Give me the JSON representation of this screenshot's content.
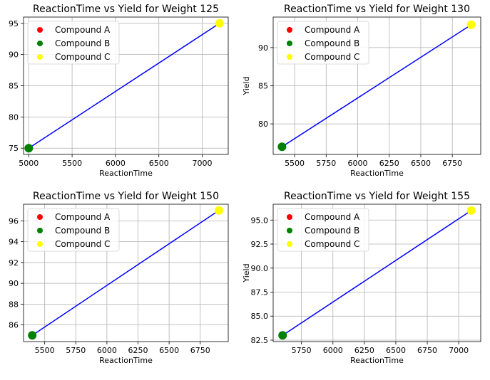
{
  "chart_data": [
    {
      "type": "scatter",
      "title": "ReactionTime vs Yield for Weight 125",
      "xlabel": "ReactionTime",
      "ylabel": "",
      "xlim": [
        4940,
        7300
      ],
      "ylim": [
        74,
        96
      ],
      "xticks": [
        5000,
        5500,
        6000,
        6500,
        7000
      ],
      "yticks": [
        75,
        80,
        85,
        90,
        95
      ],
      "grid": true,
      "legend_position": "upper-left",
      "series": [
        {
          "name": "Compound A",
          "color": "#ff0000",
          "points": []
        },
        {
          "name": "Compound B",
          "color": "#008000",
          "points": [
            [
              5000,
              75
            ]
          ]
        },
        {
          "name": "Compound C",
          "color": "#ffff00",
          "points": [
            [
              7200,
              95
            ]
          ]
        }
      ],
      "line": {
        "color": "#0000ff",
        "points": [
          [
            5000,
            75
          ],
          [
            7200,
            95
          ]
        ]
      }
    },
    {
      "type": "scatter",
      "title": "ReactionTime vs Yield for Weight 130",
      "xlabel": "ReactionTime",
      "ylabel": "Yield",
      "xlim": [
        5330,
        6975
      ],
      "ylim": [
        76,
        94
      ],
      "xticks": [
        5500,
        5750,
        6000,
        6250,
        6500,
        6750
      ],
      "yticks": [
        80,
        85,
        90
      ],
      "grid": true,
      "legend_position": "upper-left",
      "series": [
        {
          "name": "Compound A",
          "color": "#ff0000",
          "points": []
        },
        {
          "name": "Compound B",
          "color": "#008000",
          "points": [
            [
              5400,
              77
            ]
          ]
        },
        {
          "name": "Compound C",
          "color": "#ffff00",
          "points": [
            [
              6900,
              93
            ]
          ]
        }
      ],
      "line": {
        "color": "#0000ff",
        "points": [
          [
            5400,
            77
          ],
          [
            6900,
            93
          ]
        ]
      }
    },
    {
      "type": "scatter",
      "title": "ReactionTime vs Yield for Weight 150",
      "xlabel": "ReactionTime",
      "ylabel": "",
      "xlim": [
        5330,
        6975
      ],
      "ylim": [
        84.4,
        97.6
      ],
      "xticks": [
        5500,
        5750,
        6000,
        6250,
        6500,
        6750
      ],
      "yticks": [
        86,
        88,
        90,
        92,
        94,
        96
      ],
      "grid": true,
      "legend_position": "upper-left",
      "series": [
        {
          "name": "Compound A",
          "color": "#ff0000",
          "points": []
        },
        {
          "name": "Compound B",
          "color": "#008000",
          "points": [
            [
              5400,
              85
            ]
          ]
        },
        {
          "name": "Compound C",
          "color": "#ffff00",
          "points": [
            [
              6900,
              97
            ]
          ]
        }
      ],
      "line": {
        "color": "#0000ff",
        "points": [
          [
            5400,
            85
          ],
          [
            6900,
            97
          ]
        ]
      }
    },
    {
      "type": "scatter",
      "title": "ReactionTime vs Yield for Weight 155",
      "xlabel": "ReactionTime",
      "ylabel": "Yield",
      "xlim": [
        5525,
        7175
      ],
      "ylim": [
        82.35,
        96.65
      ],
      "xticks": [
        5750,
        6000,
        6250,
        6500,
        6750,
        7000
      ],
      "yticks": [
        82.5,
        85.0,
        87.5,
        90.0,
        92.5,
        95.0
      ],
      "ytick_labels": [
        "82.5",
        "85.0",
        "87.5",
        "90.0",
        "92.5",
        "95.0"
      ],
      "grid": true,
      "legend_position": "upper-left",
      "series": [
        {
          "name": "Compound A",
          "color": "#ff0000",
          "points": []
        },
        {
          "name": "Compound B",
          "color": "#008000",
          "points": [
            [
              5600,
              83
            ]
          ]
        },
        {
          "name": "Compound C",
          "color": "#ffff00",
          "points": [
            [
              7100,
              96
            ]
          ]
        }
      ],
      "line": {
        "color": "#0000ff",
        "points": [
          [
            5600,
            83
          ],
          [
            7100,
            96
          ]
        ]
      }
    }
  ]
}
